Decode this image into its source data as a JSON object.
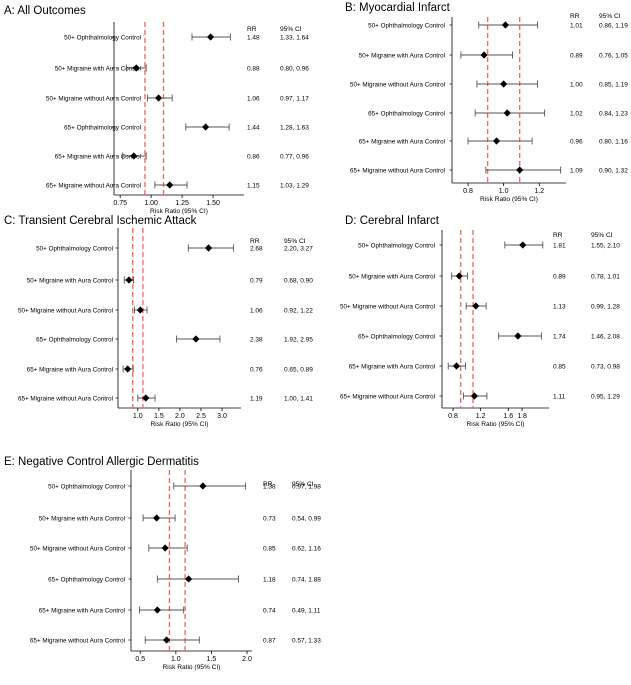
{
  "chart_data": [
    {
      "type": "forest",
      "title": "A: All Outcomes",
      "xlabel": "Risk Ratio (95% CI)",
      "xlim": [
        0.7,
        1.75
      ],
      "xticks": [
        0.75,
        1.0,
        1.25,
        1.5
      ],
      "tick_labels": [
        "0.75",
        "1.00",
        "1.25",
        "1.50"
      ],
      "reference_lines": [
        0.95,
        1.1
      ],
      "rr_header": "RR",
      "ci_header": "95% CI",
      "rows": [
        {
          "label": "50+ Ophthalmology Control",
          "rr": 1.48,
          "lo": 1.33,
          "hi": 1.64,
          "rr_text": "1.48",
          "ci_text": "1.33, 1.64"
        },
        {
          "label": "50+ Migraine with Aura Control",
          "rr": 0.88,
          "lo": 0.8,
          "hi": 0.96,
          "rr_text": "0.88",
          "ci_text": "0.80, 0.96"
        },
        {
          "label": "50+ Migraine without Aura Control",
          "rr": 1.06,
          "lo": 0.97,
          "hi": 1.17,
          "rr_text": "1.06",
          "ci_text": "0.97, 1.17"
        },
        {
          "label": "65+ Ophthalmology Control",
          "rr": 1.44,
          "lo": 1.28,
          "hi": 1.63,
          "rr_text": "1.44",
          "ci_text": "1.28, 1.63"
        },
        {
          "label": "65+ Migraine with Aura Control",
          "rr": 0.86,
          "lo": 0.77,
          "hi": 0.96,
          "rr_text": "0.86",
          "ci_text": "0.77, 0.96"
        },
        {
          "label": "65+ Migraine without Aura Control",
          "rr": 1.15,
          "lo": 1.03,
          "hi": 1.29,
          "rr_text": "1.15",
          "ci_text": "1.03, 1.29"
        }
      ]
    },
    {
      "type": "forest",
      "title": "B: Myocardial Infarct",
      "xlabel": "Risk Ratio (95% CI)",
      "xlim": [
        0.71,
        1.35
      ],
      "xticks": [
        0.8,
        1.0,
        1.2
      ],
      "tick_labels": [
        "0.8",
        "1.0",
        "1.2"
      ],
      "reference_lines": [
        0.91,
        1.09
      ],
      "rr_header": "RR",
      "ci_header": "95% CI",
      "rows": [
        {
          "label": "50+ Ophthalmology Control",
          "rr": 1.01,
          "lo": 0.86,
          "hi": 1.19,
          "rr_text": "1.01",
          "ci_text": "0.86, 1.19"
        },
        {
          "label": "50+ Migraine with Aura Control",
          "rr": 0.89,
          "lo": 0.76,
          "hi": 1.05,
          "rr_text": "0.89",
          "ci_text": "0.76, 1.05"
        },
        {
          "label": "50+ Migraine without Aura Control",
          "rr": 1.0,
          "lo": 0.85,
          "hi": 1.19,
          "rr_text": "1.00",
          "ci_text": "0.85, 1.19"
        },
        {
          "label": "65+ Ophthalmology Control",
          "rr": 1.02,
          "lo": 0.84,
          "hi": 1.23,
          "rr_text": "1.02",
          "ci_text": "0.84, 1.23"
        },
        {
          "label": "65+ Migraine with Aura Control",
          "rr": 0.96,
          "lo": 0.8,
          "hi": 1.16,
          "rr_text": "0.96",
          "ci_text": "0.80, 1.16"
        },
        {
          "label": "65+ Migraine without Aura Control",
          "rr": 1.09,
          "lo": 0.9,
          "hi": 1.32,
          "rr_text": "1.09",
          "ci_text": "0.90, 1.32"
        }
      ]
    },
    {
      "type": "forest",
      "title": "C: Transient Cerebral Ischemic Attack",
      "xlabel": "Risk Ratio (95% CI)",
      "xlim": [
        0.53,
        3.45
      ],
      "xticks": [
        1.0,
        1.5,
        2.0,
        2.5,
        3.0
      ],
      "tick_labels": [
        "1.0",
        "1.5",
        "2.0",
        "2.5",
        "3.0"
      ],
      "reference_lines": [
        0.88,
        1.12
      ],
      "rr_header": "RR",
      "ci_header": "95% CI",
      "rows": [
        {
          "label": "50+ Ophthalmology Control",
          "rr": 2.68,
          "lo": 2.2,
          "hi": 3.27,
          "rr_text": "2.68",
          "ci_text": "2.20, 3.27"
        },
        {
          "label": "50+ Migraine with Aura Control",
          "rr": 0.79,
          "lo": 0.68,
          "hi": 0.9,
          "rr_text": "0.79",
          "ci_text": "0.68, 0.90"
        },
        {
          "label": "50+ Migraine without Aura Control",
          "rr": 1.06,
          "lo": 0.92,
          "hi": 1.22,
          "rr_text": "1.06",
          "ci_text": "0.92, 1.22"
        },
        {
          "label": "65+ Ophthalmology Control",
          "rr": 2.38,
          "lo": 1.92,
          "hi": 2.95,
          "rr_text": "2.38",
          "ci_text": "1.92, 2.95"
        },
        {
          "label": "65+ Migraine with Aura Control",
          "rr": 0.76,
          "lo": 0.65,
          "hi": 0.89,
          "rr_text": "0.76",
          "ci_text": "0.65, 0.89"
        },
        {
          "label": "65+ Migraine without Aura Control",
          "rr": 1.19,
          "lo": 1.0,
          "hi": 1.41,
          "rr_text": "1.19",
          "ci_text": "1.00, 1.41"
        }
      ]
    },
    {
      "type": "forest",
      "title": "D: Cerebral Infarct",
      "xlabel": "Risk Ratio (95% CI)",
      "xlim": [
        0.64,
        2.19
      ],
      "xticks": [
        0.8,
        1.2,
        1.6,
        1.8
      ],
      "tick_labels": [
        "0.8",
        "1.2",
        "1.6",
        "1.8"
      ],
      "reference_lines": [
        0.91,
        1.09
      ],
      "rr_header": "RR",
      "ci_header": "95% CI",
      "rows": [
        {
          "label": "50+ Ophthalmology Control",
          "rr": 1.81,
          "lo": 1.55,
          "hi": 2.1,
          "rr_text": "1.81",
          "ci_text": "1.55, 2.10"
        },
        {
          "label": "50+ Migraine with Aura Control",
          "rr": 0.89,
          "lo": 0.78,
          "hi": 1.01,
          "rr_text": "0.89",
          "ci_text": "0.78, 1.01"
        },
        {
          "label": "50+ Migraine without Aura Control",
          "rr": 1.13,
          "lo": 0.99,
          "hi": 1.28,
          "rr_text": "1.13",
          "ci_text": "0.99, 1.28"
        },
        {
          "label": "65+ Ophthalmology Control",
          "rr": 1.74,
          "lo": 1.46,
          "hi": 2.08,
          "rr_text": "1.74",
          "ci_text": "1.46, 2.08"
        },
        {
          "label": "65+ Migraine with Aura Control",
          "rr": 0.85,
          "lo": 0.73,
          "hi": 0.98,
          "rr_text": "0.85",
          "ci_text": "0.73, 0.98"
        },
        {
          "label": "65+ Migraine without Aura Control",
          "rr": 1.11,
          "lo": 0.95,
          "hi": 1.29,
          "rr_text": "1.11",
          "ci_text": "0.95, 1.29"
        }
      ]
    },
    {
      "type": "forest",
      "title": "E: Negative Control Allergic Dermatitis",
      "xlabel": "Risk Ratio (95% CI)",
      "xlim": [
        0.37,
        2.07
      ],
      "xticks": [
        0.5,
        1.0,
        1.5,
        2.0
      ],
      "tick_labels": [
        "0.5",
        "1.0",
        "1.5",
        "2.0"
      ],
      "reference_lines": [
        0.91,
        1.13
      ],
      "rr_header": "RR",
      "ci_header": "95% CI",
      "rows": [
        {
          "label": "50+ Ophthalmology Control",
          "rr": 1.38,
          "lo": 0.97,
          "hi": 1.98,
          "rr_text": "1.38",
          "ci_text": "0.97, 1.98"
        },
        {
          "label": "50+ Migraine with Aura Control",
          "rr": 0.73,
          "lo": 0.54,
          "hi": 0.99,
          "rr_text": "0.73",
          "ci_text": "0.54, 0.99"
        },
        {
          "label": "50+ Migraine without Aura Control",
          "rr": 0.85,
          "lo": 0.62,
          "hi": 1.16,
          "rr_text": "0.85",
          "ci_text": "0.62, 1.16"
        },
        {
          "label": "65+ Ophthalmology Control",
          "rr": 1.18,
          "lo": 0.74,
          "hi": 1.88,
          "rr_text": "1.18",
          "ci_text": "0.74, 1.88"
        },
        {
          "label": "65+ Migraine with Aura Control",
          "rr": 0.74,
          "lo": 0.49,
          "hi": 1.11,
          "rr_text": "0.74",
          "ci_text": "0.49, 1.11"
        },
        {
          "label": "65+ Migraine without Aura Control",
          "rr": 0.87,
          "lo": 0.57,
          "hi": 1.33,
          "rr_text": "0.87",
          "ci_text": "0.57, 1.33"
        }
      ]
    }
  ],
  "colors": {
    "reference_line": "#f26b6b",
    "marker": "#000000",
    "ci_line": "#555555",
    "axis": "#000000"
  }
}
